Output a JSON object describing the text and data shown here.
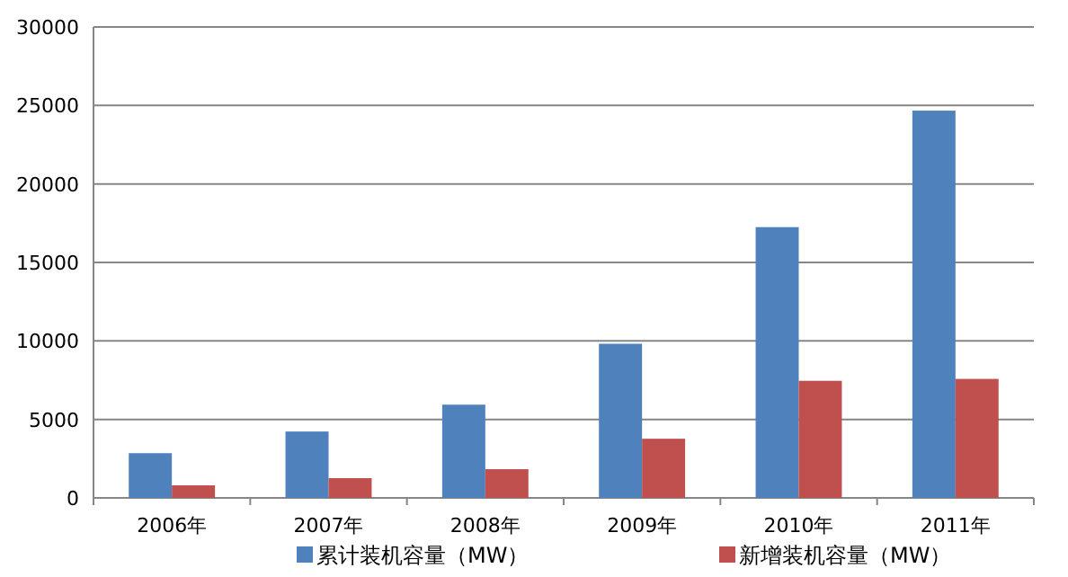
{
  "chart_data": {
    "type": "bar",
    "categories": [
      "2006年",
      "2007年",
      "2008年",
      "2009年",
      "2010年",
      "2011年"
    ],
    "series": [
      {
        "name": "累计装机容量（MW）",
        "color": "#4f81bd",
        "values": [
          2850,
          4230,
          5940,
          9820,
          17250,
          24670
        ]
      },
      {
        "name": "新增装机容量（MW）",
        "color": "#c0504d",
        "values": [
          800,
          1260,
          1830,
          3770,
          7460,
          7580
        ]
      }
    ],
    "ylim": [
      0,
      30000
    ],
    "yticks": [
      0,
      5000,
      10000,
      15000,
      20000,
      25000,
      30000
    ],
    "grid": "y",
    "legend": "bottom"
  }
}
